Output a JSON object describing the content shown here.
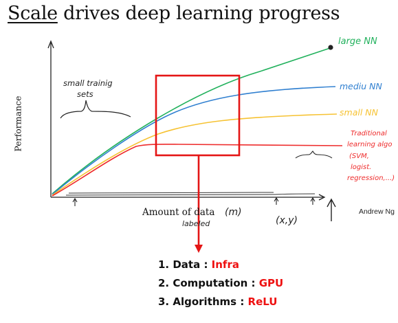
{
  "title": {
    "underlined": "Scale",
    "rest": " drives deep learning progress"
  },
  "axes": {
    "ylabel": "Performance",
    "xlabel": "Amount of data"
  },
  "curve_labels": {
    "large": "large NN",
    "medium": "mediu NN",
    "small": "small NN",
    "traditional": [
      "Traditional",
      "learning algo",
      "(SVM,",
      "logist.",
      "regression,...)"
    ]
  },
  "annotations": {
    "small_sets": [
      "small trainig",
      "sets"
    ],
    "m": "(m)",
    "xy": "(x,y)",
    "labeled": "labeled"
  },
  "credit": "Andrew Ng",
  "list": [
    {
      "label": "1. Data : ",
      "value": "Infra"
    },
    {
      "label": "2. Computation : ",
      "value": "GPU"
    },
    {
      "label": "3. Algorithms : ",
      "value": "ReLU"
    }
  ],
  "colors": {
    "large": "#21b15c",
    "medium": "#2f7fd0",
    "small": "#f6c232",
    "traditional": "#ee2b2b",
    "highlight": "#e41515",
    "value_text": "#ee1111"
  }
}
